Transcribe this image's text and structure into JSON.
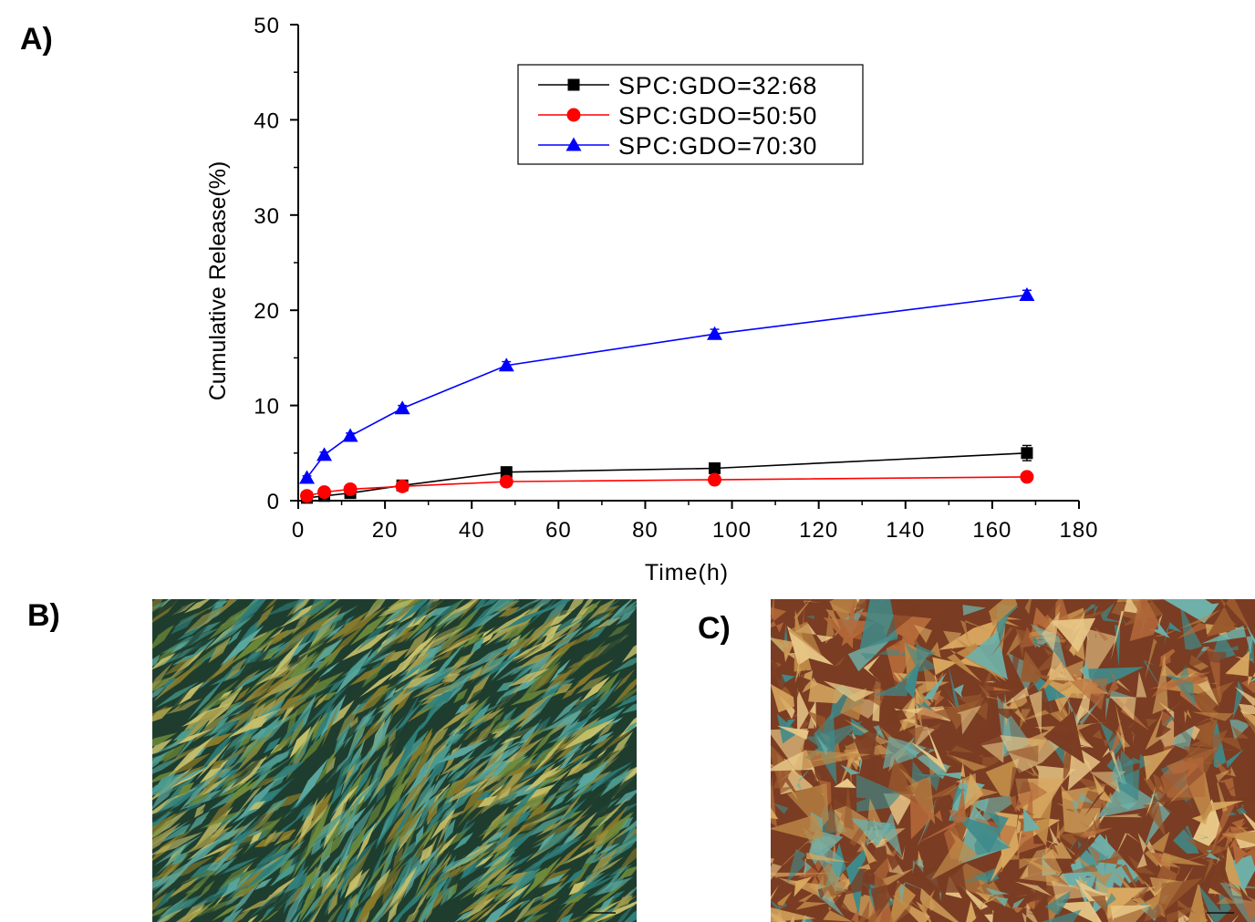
{
  "panels": {
    "a_label": "A)",
    "b_label": "B)",
    "c_label": "C)"
  },
  "chart_data": {
    "type": "line",
    "title": "",
    "xlabel": "Time(h)",
    "ylabel": "Cumulative Release(%)",
    "xlim": [
      0,
      180
    ],
    "ylim": [
      0,
      50
    ],
    "x_ticks": [
      0,
      20,
      40,
      60,
      80,
      100,
      120,
      140,
      160,
      180
    ],
    "y_ticks": [
      0,
      10,
      20,
      30,
      40,
      50
    ],
    "grid": false,
    "legend_position": "top-center",
    "series": [
      {
        "name": "SPC:GDO=32:68",
        "color": "#000000",
        "marker": "square",
        "x": [
          2,
          6,
          12,
          24,
          48,
          96,
          168
        ],
        "y": [
          0.3,
          0.5,
          0.8,
          1.6,
          3.0,
          3.4,
          5.0
        ],
        "error": [
          0.1,
          0.1,
          0.2,
          0.2,
          0.3,
          0.3,
          0.8
        ]
      },
      {
        "name": "SPC:GDO=50:50",
        "color": "#ff0000",
        "marker": "circle",
        "x": [
          2,
          6,
          12,
          24,
          48,
          96,
          168
        ],
        "y": [
          0.5,
          0.9,
          1.2,
          1.5,
          2.0,
          2.2,
          2.5
        ],
        "error": [
          0.1,
          0.1,
          0.1,
          0.2,
          0.2,
          0.2,
          0.2
        ]
      },
      {
        "name": "SPC:GDO=70:30",
        "color": "#0000ff",
        "marker": "triangle",
        "x": [
          2,
          6,
          12,
          24,
          48,
          96,
          168
        ],
        "y": [
          2.4,
          4.8,
          6.8,
          9.7,
          14.2,
          17.5,
          21.6
        ],
        "error": [
          0.2,
          0.3,
          0.3,
          0.3,
          0.4,
          0.5,
          0.5
        ]
      }
    ]
  },
  "images": {
    "b": {
      "name": "polarized-micrograph-b",
      "palette": [
        "#2f7f7c",
        "#4a9b8f",
        "#6f8a3a",
        "#a39a4a",
        "#c8c06a",
        "#1e3d2e",
        "#5aa7a0",
        "#8a7a2a"
      ]
    },
    "c": {
      "name": "polarized-micrograph-c",
      "palette": [
        "#d8a860",
        "#b56a3a",
        "#7a3c22",
        "#e8c888",
        "#3f8a8a",
        "#6fb0a8",
        "#c08a48",
        "#9a5a2e"
      ]
    }
  }
}
